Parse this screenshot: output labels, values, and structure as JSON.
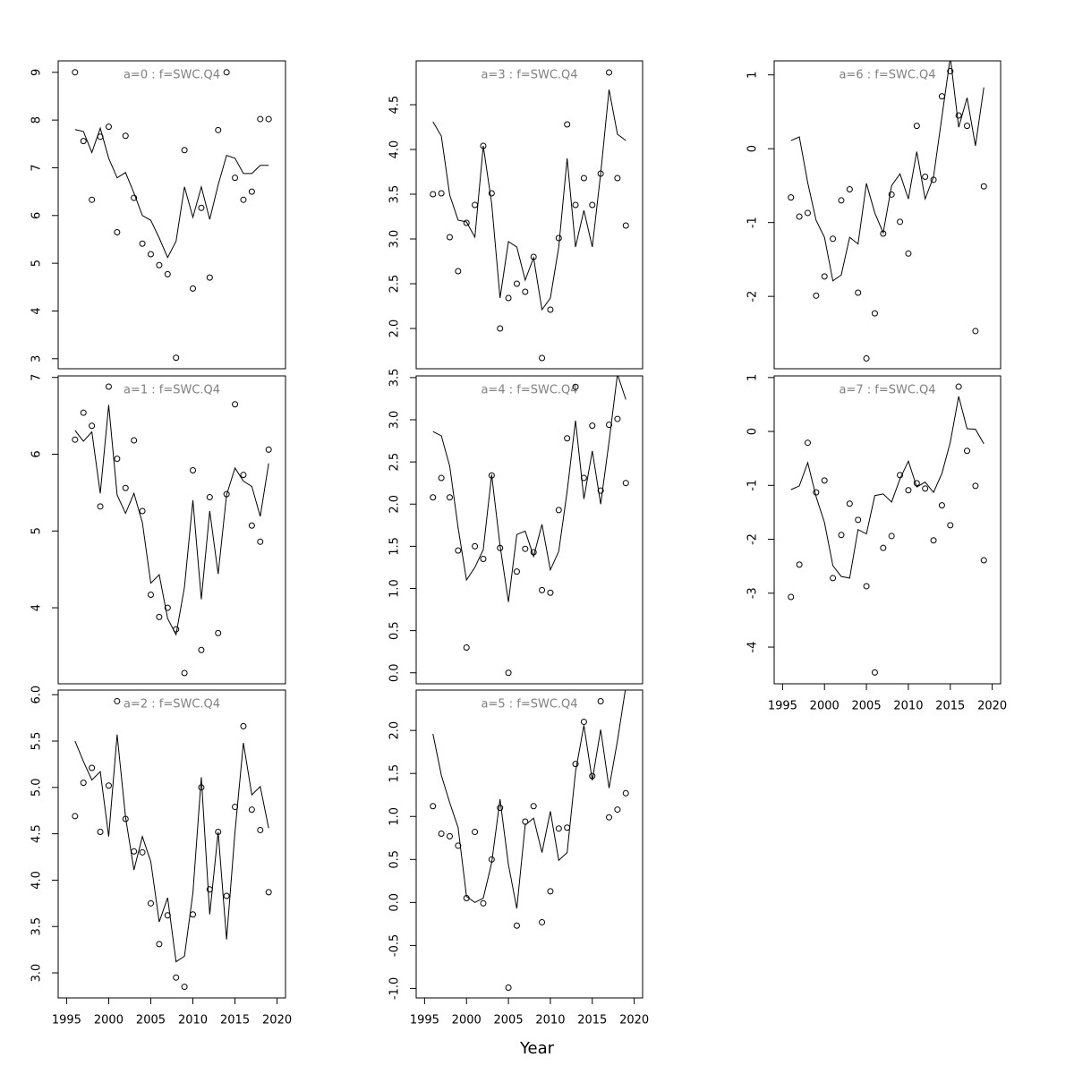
{
  "xlabel": "Year",
  "chart_data": [
    {
      "type": "line",
      "title": "a=0  :  f=SWC.Q4",
      "x": [
        1996,
        1997,
        1998,
        1999,
        2000,
        2001,
        2002,
        2003,
        2004,
        2005,
        2006,
        2007,
        2008,
        2009,
        2010,
        2011,
        2012,
        2013,
        2014,
        2015,
        2016,
        2017,
        2018,
        2019
      ],
      "xlim": [
        1994,
        2021
      ],
      "ylim": [
        2.79,
        9.24
      ],
      "yticks": [
        3,
        4,
        5,
        6,
        7,
        8,
        9
      ],
      "series": [
        {
          "kind": "points",
          "color": "#000000",
          "values": [
            9.0,
            7.56,
            6.33,
            7.65,
            7.86,
            5.65,
            7.67,
            6.37,
            5.41,
            5.19,
            4.96,
            4.77,
            3.02,
            7.37,
            4.47,
            6.16,
            4.7,
            7.79,
            9.0,
            6.79,
            6.33,
            6.5,
            8.02,
            8.02
          ]
        },
        {
          "kind": "line",
          "color": "#000000",
          "values": [
            7.8,
            7.76,
            7.32,
            7.83,
            7.2,
            6.79,
            6.9,
            6.47,
            6.0,
            5.9,
            5.53,
            5.12,
            5.46,
            6.6,
            5.96,
            6.6,
            5.92,
            6.64,
            7.26,
            7.2,
            6.88,
            6.88,
            7.05,
            7.05
          ]
        }
      ]
    },
    {
      "type": "line",
      "title": "a=1  :  f=SWC.Q4",
      "x": [
        1996,
        1997,
        1998,
        1999,
        2000,
        2001,
        2002,
        2003,
        2004,
        2005,
        2006,
        2007,
        2008,
        2009,
        2010,
        2011,
        2012,
        2013,
        2014,
        2015,
        2016,
        2017,
        2018,
        2019
      ],
      "xlim": [
        1994,
        2021
      ],
      "ylim": [
        3.01,
        7.02
      ],
      "yticks": [
        4,
        5,
        6,
        7
      ],
      "series": [
        {
          "kind": "points",
          "color": "#000000",
          "values": [
            6.19,
            6.54,
            6.37,
            5.32,
            6.88,
            5.94,
            5.56,
            6.18,
            5.26,
            4.17,
            3.88,
            4.0,
            3.72,
            3.15,
            5.79,
            3.45,
            5.44,
            3.67,
            5.48,
            6.65,
            5.73,
            5.07,
            4.86,
            6.06
          ]
        },
        {
          "kind": "line",
          "color": "#000000",
          "values": [
            6.31,
            6.17,
            6.29,
            5.49,
            6.64,
            5.47,
            5.23,
            5.49,
            5.11,
            4.32,
            4.43,
            3.86,
            3.65,
            4.27,
            5.4,
            4.11,
            5.26,
            4.44,
            5.47,
            5.82,
            5.65,
            5.58,
            5.19,
            5.88
          ]
        }
      ]
    },
    {
      "type": "line",
      "title": "a=2  :  f=SWC.Q4",
      "x": [
        1996,
        1997,
        1998,
        1999,
        2000,
        2001,
        2002,
        2003,
        2004,
        2005,
        2006,
        2007,
        2008,
        2009,
        2010,
        2011,
        2012,
        2013,
        2014,
        2015,
        2016,
        2017,
        2018,
        2019
      ],
      "xlim": [
        1994,
        2021
      ],
      "xticks": [
        1995,
        2000,
        2005,
        2010,
        2015,
        2020
      ],
      "ylim": [
        2.73,
        6.05
      ],
      "yticks": [
        {
          "value": 3,
          "label": "3.0"
        },
        3.5,
        {
          "value": 4,
          "label": "4.0"
        },
        4.5,
        {
          "value": 5,
          "label": "5.0"
        },
        5.5,
        {
          "value": 6,
          "label": "6.0"
        }
      ],
      "series": [
        {
          "kind": "points",
          "color": "#000000",
          "values": [
            4.69,
            5.05,
            5.21,
            4.52,
            5.02,
            5.93,
            4.66,
            4.31,
            4.3,
            3.75,
            3.31,
            3.62,
            2.95,
            2.85,
            3.63,
            5.0,
            3.9,
            4.52,
            3.83,
            4.79,
            5.66,
            4.76,
            4.54,
            3.87
          ]
        },
        {
          "kind": "line",
          "color": "#000000",
          "values": [
            5.5,
            5.28,
            5.08,
            5.17,
            4.47,
            5.57,
            4.68,
            4.11,
            4.47,
            4.2,
            3.55,
            3.81,
            3.12,
            3.18,
            3.86,
            5.11,
            3.63,
            4.52,
            3.36,
            4.52,
            5.48,
            4.92,
            5.01,
            4.56
          ]
        }
      ]
    },
    {
      "type": "line",
      "title": "a=3  :  f=SWC.Q4",
      "x": [
        1996,
        1997,
        1998,
        1999,
        2000,
        2001,
        2002,
        2003,
        2004,
        2005,
        2006,
        2007,
        2008,
        2009,
        2010,
        2011,
        2012,
        2013,
        2014,
        2015,
        2016,
        2017,
        2018,
        2019
      ],
      "xlim": [
        1994,
        2021
      ],
      "ylim": [
        1.55,
        4.99
      ],
      "yticks": [
        {
          "value": 2,
          "label": "2.0"
        },
        2.5,
        {
          "value": 3,
          "label": "3.0"
        },
        3.5,
        {
          "value": 4,
          "label": "4.0"
        },
        4.5
      ],
      "series": [
        {
          "kind": "points",
          "color": "#000000",
          "values": [
            3.5,
            3.51,
            3.02,
            2.64,
            3.18,
            3.38,
            4.04,
            3.51,
            2.0,
            2.34,
            2.5,
            2.41,
            2.8,
            1.67,
            2.21,
            3.01,
            4.28,
            3.38,
            3.68,
            3.38,
            3.73,
            4.86,
            3.68,
            3.15
          ]
        },
        {
          "kind": "line",
          "color": "#000000",
          "values": [
            4.31,
            4.15,
            3.49,
            3.21,
            3.19,
            3.02,
            4.04,
            3.4,
            2.34,
            2.97,
            2.91,
            2.54,
            2.79,
            2.21,
            2.34,
            2.91,
            3.9,
            2.91,
            3.32,
            2.91,
            3.73,
            4.67,
            4.17,
            4.1
          ]
        }
      ]
    },
    {
      "type": "line",
      "title": "a=4  :  f=SWC.Q4",
      "x": [
        1996,
        1997,
        1998,
        1999,
        2000,
        2001,
        2002,
        2003,
        2004,
        2005,
        2006,
        2007,
        2008,
        2009,
        2010,
        2011,
        2012,
        2013,
        2014,
        2015,
        2016,
        2017,
        2018,
        2019
      ],
      "xlim": [
        1994,
        2021
      ],
      "ylim": [
        -0.13,
        3.52
      ],
      "yticks": [
        {
          "value": 0,
          "label": "0.0"
        },
        0.5,
        {
          "value": 1,
          "label": "1.0"
        },
        1.5,
        {
          "value": 2,
          "label": "2.0"
        },
        2.5,
        {
          "value": 3,
          "label": "3.0"
        },
        3.5
      ],
      "series": [
        {
          "kind": "points",
          "color": "#000000",
          "values": [
            2.08,
            2.31,
            2.08,
            1.45,
            0.3,
            1.5,
            1.35,
            2.34,
            1.48,
            0.0,
            1.2,
            1.47,
            1.43,
            0.98,
            0.95,
            1.93,
            2.78,
            3.39,
            2.31,
            2.93,
            2.16,
            2.94,
            3.01,
            2.25
          ]
        },
        {
          "kind": "line",
          "color": "#000000",
          "values": [
            2.86,
            2.81,
            2.45,
            1.72,
            1.1,
            1.25,
            1.46,
            2.35,
            1.51,
            0.84,
            1.64,
            1.68,
            1.38,
            1.76,
            1.22,
            1.44,
            2.15,
            2.99,
            2.06,
            2.63,
            2.0,
            2.74,
            3.54,
            3.24
          ]
        }
      ]
    },
    {
      "type": "line",
      "title": "a=5  :  f=SWC.Q4",
      "x": [
        1996,
        1997,
        1998,
        1999,
        2000,
        2001,
        2002,
        2003,
        2004,
        2005,
        2006,
        2007,
        2008,
        2009,
        2010,
        2011,
        2012,
        2013,
        2014,
        2015,
        2016,
        2017,
        2018,
        2019
      ],
      "xlim": [
        1994,
        2021
      ],
      "xticks": [
        1995,
        2000,
        2005,
        2010,
        2015,
        2020
      ],
      "ylim": [
        -1.11,
        2.47
      ],
      "yticks": [
        {
          "value": -1,
          "label": "-1.0"
        },
        -0.5,
        {
          "value": 0,
          "label": "0.0"
        },
        0.5,
        {
          "value": 1,
          "label": "1.0"
        },
        1.5,
        {
          "value": 2,
          "label": "2.0"
        }
      ],
      "series": [
        {
          "kind": "points",
          "color": "#000000",
          "values": [
            1.12,
            0.8,
            0.77,
            0.66,
            0.05,
            0.82,
            -0.01,
            0.5,
            1.1,
            -0.99,
            -0.27,
            0.94,
            1.12,
            -0.23,
            0.13,
            0.86,
            0.87,
            1.61,
            2.1,
            1.47,
            2.34,
            0.99,
            1.08,
            1.27
          ]
        },
        {
          "kind": "line",
          "color": "#000000",
          "values": [
            1.96,
            1.48,
            1.16,
            0.87,
            0.07,
            0.0,
            0.05,
            0.46,
            1.2,
            0.44,
            -0.07,
            0.9,
            0.98,
            0.58,
            1.06,
            0.49,
            0.58,
            1.52,
            2.06,
            1.42,
            2.01,
            1.33,
            1.88,
            2.51
          ]
        }
      ]
    },
    {
      "type": "line",
      "title": "a=6  :  f=SWC.Q4",
      "x": [
        1996,
        1997,
        1998,
        1999,
        2000,
        2001,
        2002,
        2003,
        2004,
        2005,
        2006,
        2007,
        2008,
        2009,
        2010,
        2011,
        2012,
        2013,
        2014,
        2015,
        2016,
        2017,
        2018,
        2019
      ],
      "xlim": [
        1994,
        2021
      ],
      "ylim": [
        -2.98,
        1.19
      ],
      "yticks": [
        -2,
        -1,
        0,
        1
      ],
      "series": [
        {
          "kind": "points",
          "color": "#000000",
          "values": [
            -0.66,
            -0.92,
            -0.87,
            -1.99,
            -1.73,
            -1.22,
            -0.7,
            -0.55,
            -1.95,
            -2.84,
            -2.23,
            -1.15,
            -0.62,
            -0.99,
            -1.42,
            0.31,
            -0.38,
            -0.42,
            0.71,
            1.05,
            0.45,
            0.31,
            -2.47,
            -0.51
          ]
        },
        {
          "kind": "line",
          "color": "#000000",
          "values": [
            0.11,
            0.16,
            -0.46,
            -0.97,
            -1.2,
            -1.79,
            -1.71,
            -1.2,
            -1.29,
            -0.47,
            -0.87,
            -1.14,
            -0.5,
            -0.34,
            -0.68,
            -0.04,
            -0.68,
            -0.38,
            0.43,
            1.24,
            0.29,
            0.69,
            0.04,
            0.83
          ]
        }
      ]
    },
    {
      "type": "line",
      "title": "a=7  :  f=SWC.Q4",
      "x": [
        1996,
        1997,
        1998,
        1999,
        2000,
        2001,
        2002,
        2003,
        2004,
        2005,
        2006,
        2007,
        2008,
        2009,
        2010,
        2011,
        2012,
        2013,
        2014,
        2015,
        2016,
        2017,
        2018,
        2019
      ],
      "xlim": [
        1994,
        2021
      ],
      "xticks": [
        1995,
        2000,
        2005,
        2010,
        2015,
        2020
      ],
      "ylim": [
        -4.68,
        1.03
      ],
      "yticks": [
        -4,
        -3,
        -2,
        -1,
        0,
        1
      ],
      "series": [
        {
          "kind": "points",
          "color": "#000000",
          "values": [
            -3.07,
            -2.47,
            -0.21,
            -1.13,
            -0.91,
            -2.72,
            -1.92,
            -1.34,
            -1.64,
            -2.87,
            -4.47,
            -2.16,
            -1.94,
            -0.81,
            -1.09,
            -0.96,
            -1.06,
            -2.02,
            -1.37,
            -1.74,
            0.83,
            -0.36,
            -1.01,
            -2.39
          ]
        },
        {
          "kind": "line",
          "color": "#000000",
          "values": [
            -1.08,
            -1.01,
            -0.58,
            -1.21,
            -1.69,
            -2.49,
            -2.69,
            -2.72,
            -1.82,
            -1.9,
            -1.19,
            -1.16,
            -1.31,
            -0.88,
            -0.55,
            -1.03,
            -0.94,
            -1.13,
            -0.78,
            -0.2,
            0.65,
            0.05,
            0.04,
            -0.23
          ]
        }
      ]
    }
  ]
}
